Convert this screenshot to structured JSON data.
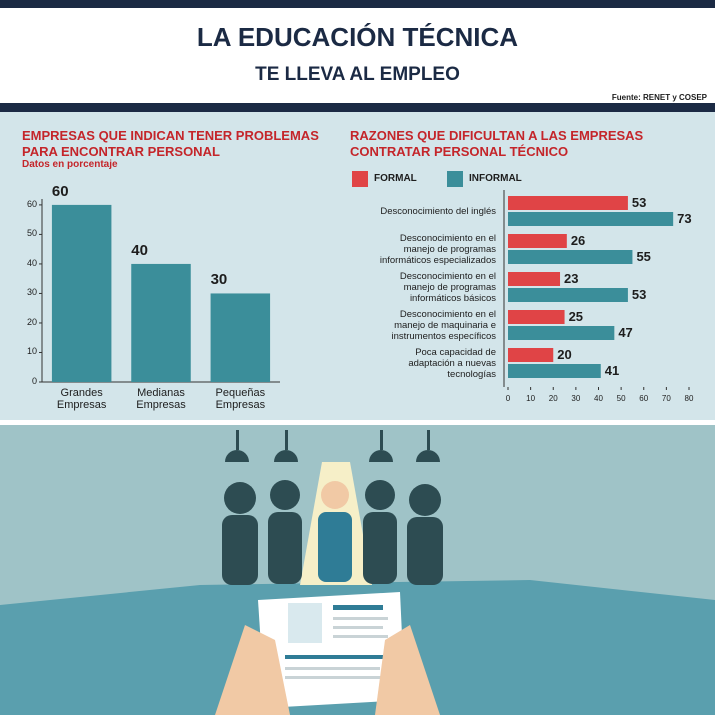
{
  "header": {
    "title": "LA EDUCACIÓN TÉCNICA",
    "subtitle": "TE LLEVA AL EMPLEO",
    "source": "Fuente: RENET y COSEP"
  },
  "chart_data": [
    {
      "type": "bar",
      "title": "EMPRESAS QUE INDICAN TENER PROBLEMAS PARA ENCONTRAR PERSONAL",
      "subtitle": "Datos en porcentaje",
      "categories": [
        "Grandes Empresas",
        "Medianas Empresas",
        "Pequeñas Empresas"
      ],
      "values": [
        60,
        40,
        30
      ],
      "color": "#3b8e9a",
      "ylim": [
        0,
        62
      ],
      "yticks": [
        0,
        10,
        20,
        30,
        40,
        50,
        60
      ]
    },
    {
      "type": "hbar",
      "title": "RAZONES QUE DIFICULTAN A LAS EMPRESAS CONTRATAR PERSONAL TÉCNICO",
      "categories": [
        "Desconocimiento del inglés",
        "Desconocimiento en el manejo de programas informáticos especializados",
        "Desconocimiento en el manejo de programas informáticos básicos",
        "Desconocimiento en el manejo de maquinaria e instrumentos específicos",
        "Poca capacidad de adaptación a nuevas tecnologías"
      ],
      "series": [
        {
          "name": "FORMAL",
          "color": "#e04446",
          "values": [
            53,
            26,
            23,
            25,
            20
          ]
        },
        {
          "name": "INFORMAL",
          "color": "#3b8e9a",
          "values": [
            73,
            55,
            53,
            47,
            41
          ]
        }
      ],
      "xlim": [
        0,
        80
      ],
      "xticks": [
        0,
        10,
        20,
        30,
        40,
        50,
        60,
        70,
        80
      ]
    }
  ]
}
